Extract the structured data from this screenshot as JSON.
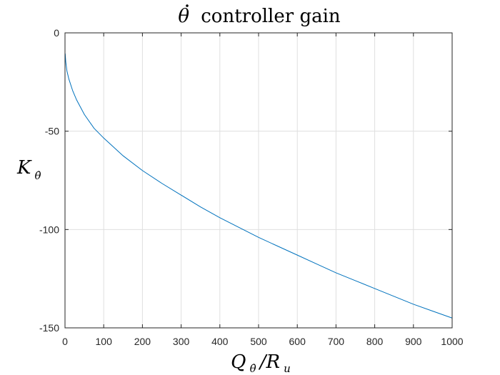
{
  "chart_data": {
    "type": "line",
    "title": "θ̇ controller gain",
    "title_text": "controller gain",
    "title_symbol": "θ",
    "xlabel": "Q_θ̇/R_u",
    "xlabel_main": "Q",
    "xlabel_sub": "θ̇",
    "xlabel_rest": "/R",
    "xlabel_rest_sub": "u",
    "ylabel": "K_θ̇",
    "ylabel_main": "K",
    "ylabel_sub": "θ̇",
    "xlim": [
      0,
      1000
    ],
    "ylim": [
      -150,
      0
    ],
    "xticks": [
      0,
      100,
      200,
      300,
      400,
      500,
      600,
      700,
      800,
      900,
      1000
    ],
    "yticks": [
      0,
      -50,
      -100,
      -150
    ],
    "ytick_labels": [
      "0",
      "-50",
      "-100",
      "-150"
    ],
    "grid": true,
    "line_color": "#0072BD",
    "series": [
      {
        "x": [
          0.5,
          2,
          5,
          10,
          20,
          30,
          50,
          75,
          100,
          150,
          200,
          250,
          300,
          350,
          400,
          450,
          500,
          550,
          600,
          650,
          700,
          750,
          800,
          850,
          900,
          950,
          1000
        ],
        "values": [
          -10.5,
          -14.8,
          -19.4,
          -23.5,
          -29.5,
          -34.1,
          -41.5,
          -48.5,
          -53.5,
          -62.5,
          -70.0,
          -76.5,
          -82.5,
          -88.5,
          -94.0,
          -99.0,
          -104.0,
          -108.5,
          -113.0,
          -117.5,
          -122.0,
          -126.0,
          -130.0,
          -134.0,
          -138.0,
          -141.5,
          -145.0
        ]
      }
    ]
  }
}
